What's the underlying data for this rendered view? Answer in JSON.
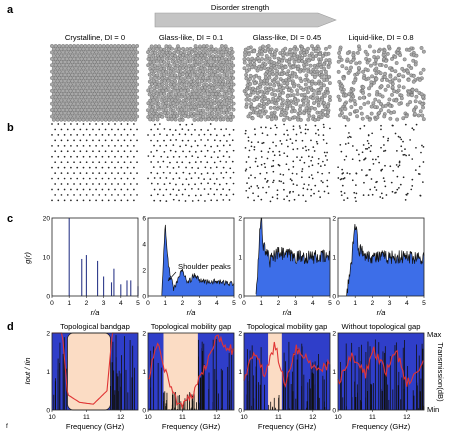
{
  "figure": {
    "panel_labels": [
      "a",
      "b",
      "c",
      "d"
    ],
    "disorder_arrow_label": "Disorder strength",
    "columns": [
      {
        "title": "Crystalline, DI = 0",
        "di": 0
      },
      {
        "title": "Glass-like, DI = 0.1",
        "di": 0.1
      },
      {
        "title": "Glass-like, DI = 0.45",
        "di": 0.45
      },
      {
        "title": "Liquid-like, DI = 0.8",
        "di": 0.8
      }
    ],
    "c": {
      "xlabel": "r/a",
      "ylabel": "g(r)",
      "xticks": [
        "0",
        "1",
        "2",
        "3",
        "4",
        "5"
      ],
      "yticks": [
        [
          "0",
          "10",
          "20"
        ],
        [
          "0",
          "2",
          "4",
          "6"
        ],
        [
          "0",
          "1",
          "2"
        ],
        [
          "0",
          "1",
          "2"
        ]
      ],
      "annotation": "Shoulder peaks"
    },
    "d": {
      "titles": [
        "Topological bandgap",
        "Topological mobility gap",
        "Topological mobility gap",
        "Without topological gap"
      ],
      "xlabel": "Frequency (GHz)",
      "xticks": [
        "10",
        "11",
        "12"
      ],
      "yticks": [
        "0",
        "1",
        "2"
      ],
      "ylabel_main": "Iout / Iin",
      "ylabel_right": "Transmission(dB)",
      "right_max": "Max",
      "right_min": "Min",
      "corner_mark": "f"
    }
  },
  "chart_data": [
    {
      "type": "line",
      "title": "",
      "panel": "c",
      "xlabel": "r/a",
      "ylabel": "g(r)",
      "xlim": [
        0,
        5
      ],
      "ylim": [
        0,
        20
      ],
      "series": [
        {
          "values": [
            [
              1.0,
              20
            ],
            [
              1.73,
              9.5
            ],
            [
              2.0,
              10.5
            ],
            [
              2.65,
              9
            ],
            [
              3.0,
              5
            ],
            [
              3.46,
              3.5
            ],
            [
              3.6,
              7
            ],
            [
              4.0,
              3
            ],
            [
              4.36,
              4
            ],
            [
              4.58,
              4
            ],
            [
              5.0,
              2.5
            ]
          ]
        }
      ]
    },
    {
      "type": "area",
      "title": "",
      "panel": "c",
      "xlabel": "r/a",
      "ylabel": "g(r)",
      "xlim": [
        0,
        5
      ],
      "ylim": [
        0,
        6
      ],
      "series": [
        {
          "values": [
            [
              0.8,
              0
            ],
            [
              1.0,
              5.5
            ],
            [
              1.2,
              2.2
            ],
            [
              1.5,
              0.5
            ],
            [
              1.8,
              1.5
            ],
            [
              2.0,
              2.0
            ],
            [
              2.3,
              1.0
            ],
            [
              2.7,
              1.6
            ],
            [
              3.0,
              1.2
            ],
            [
              3.5,
              1.1
            ],
            [
              4.0,
              1.1
            ],
            [
              4.5,
              1.0
            ],
            [
              5.0,
              1.0
            ]
          ]
        }
      ],
      "annotations": [
        "Shoulder peaks"
      ]
    },
    {
      "type": "area",
      "title": "",
      "panel": "c",
      "xlabel": "r/a",
      "ylabel": "",
      "xlim": [
        0,
        5
      ],
      "ylim": [
        0,
        2
      ],
      "series": [
        {
          "values": [
            [
              0.7,
              0
            ],
            [
              0.9,
              1.5
            ],
            [
              1.0,
              2.3
            ],
            [
              1.1,
              1.3
            ],
            [
              1.5,
              0.9
            ],
            [
              2.0,
              1.1
            ],
            [
              3.0,
              1.0
            ],
            [
              4.0,
              1.0
            ],
            [
              5.0,
              1.0
            ]
          ]
        }
      ]
    },
    {
      "type": "area",
      "title": "",
      "panel": "c",
      "xlabel": "r/a",
      "ylabel": "",
      "xlim": [
        0,
        5
      ],
      "ylim": [
        0,
        2
      ],
      "series": [
        {
          "values": [
            [
              0.5,
              0
            ],
            [
              0.8,
              1.0
            ],
            [
              1.0,
              1.9
            ],
            [
              1.2,
              1.2
            ],
            [
              1.5,
              1.1
            ],
            [
              2.0,
              1.0
            ],
            [
              3.0,
              1.0
            ],
            [
              4.0,
              1.0
            ],
            [
              5.0,
              1.0
            ]
          ]
        }
      ]
    },
    {
      "type": "line",
      "title": "Topological bandgap",
      "panel": "d",
      "xlabel": "Frequency (GHz)",
      "ylabel": "Iout / Iin",
      "xlim": [
        10,
        12.5
      ],
      "ylim": [
        0,
        2
      ],
      "series": [
        {
          "values": [
            [
              10.0,
              2.0
            ],
            [
              10.3,
              2.0
            ],
            [
              10.45,
              0.4
            ],
            [
              10.8,
              0.2
            ],
            [
              11.2,
              0.15
            ],
            [
              11.6,
              0.5
            ],
            [
              11.75,
              2.0
            ],
            [
              12.5,
              2.0
            ]
          ]
        }
      ],
      "shaded_band": [
        10.45,
        11.7
      ]
    },
    {
      "type": "line",
      "title": "Topological mobility gap",
      "panel": "d",
      "xlabel": "Frequency (GHz)",
      "ylabel": "",
      "xlim": [
        10,
        12.5
      ],
      "ylim": [
        0,
        2
      ],
      "series": [
        {
          "values": [
            [
              10.0,
              0.8
            ],
            [
              10.3,
              1.8
            ],
            [
              10.5,
              1.0
            ],
            [
              10.8,
              0.3
            ],
            [
              11.0,
              0.1
            ],
            [
              11.3,
              0.4
            ],
            [
              11.7,
              1.2
            ],
            [
              12.0,
              1.9
            ],
            [
              12.5,
              1.5
            ]
          ]
        }
      ],
      "shaded_band": [
        10.45,
        11.45
      ]
    },
    {
      "type": "line",
      "title": "Topological mobility gap",
      "panel": "d",
      "xlabel": "Frequency (GHz)",
      "ylabel": "",
      "xlim": [
        10,
        12.5
      ],
      "ylim": [
        0,
        2
      ],
      "series": [
        {
          "values": [
            [
              10.0,
              0.8
            ],
            [
              10.3,
              1.5
            ],
            [
              10.6,
              0.9
            ],
            [
              10.9,
              1.7
            ],
            [
              11.2,
              0.6
            ],
            [
              11.5,
              1.6
            ],
            [
              11.8,
              1.4
            ],
            [
              12.1,
              1.0
            ],
            [
              12.5,
              1.2
            ]
          ]
        }
      ],
      "shaded_band": [
        10.7,
        11.1
      ]
    },
    {
      "type": "line",
      "title": "Without topological gap",
      "panel": "d",
      "xlabel": "Frequency (GHz)",
      "ylabel": "",
      "xlim": [
        10,
        12.5
      ],
      "ylim": [
        0,
        2
      ],
      "series": [
        {
          "values": [
            [
              10.0,
              0.7
            ],
            [
              10.4,
              1.4
            ],
            [
              10.8,
              0.9
            ],
            [
              11.0,
              1.6
            ],
            [
              11.4,
              1.0
            ],
            [
              11.7,
              1.5
            ],
            [
              12.0,
              0.7
            ],
            [
              12.5,
              1.2
            ]
          ]
        }
      ]
    }
  ]
}
